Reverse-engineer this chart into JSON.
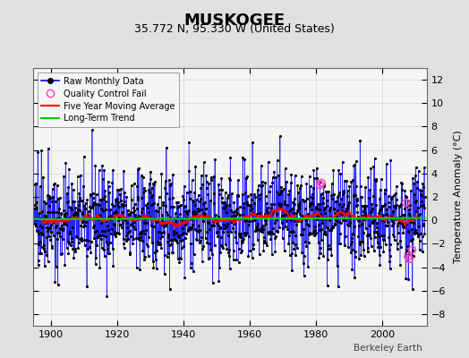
{
  "title": "MUSKOGEE",
  "subtitle": "35.772 N, 95.330 W (United States)",
  "ylabel": "Temperature Anomaly (°C)",
  "watermark": "Berkeley Earth",
  "year_start": 1895,
  "year_end": 2013,
  "ylim": [
    -9,
    13
  ],
  "yticks": [
    -8,
    -6,
    -4,
    -2,
    0,
    2,
    4,
    6,
    8,
    10,
    12
  ],
  "xticks": [
    1900,
    1920,
    1940,
    1960,
    1980,
    2000
  ],
  "bg_color": "#e0e0e0",
  "plot_bg_color": "#f5f5f5",
  "line_color": "#0000ff",
  "dot_color": "#000000",
  "ma_color": "#ff0000",
  "trend_color": "#00cc00",
  "qc_color": "#ff44bb",
  "seed": 42,
  "n_months": 1416,
  "long_term_slope": 0.0015,
  "qc_points": [
    [
      1981.3,
      3.0
    ],
    [
      1981.7,
      3.2
    ],
    [
      2007.2,
      1.5
    ],
    [
      2007.8,
      -3.1
    ],
    [
      2008.3,
      -3.3
    ],
    [
      2009.1,
      -2.5
    ]
  ]
}
